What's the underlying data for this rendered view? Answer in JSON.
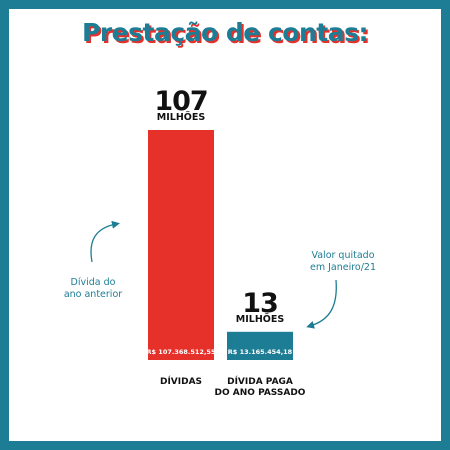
{
  "title": "Prestação de contas:",
  "colors": {
    "accent": "#1d7d95",
    "debt": "#e6302a",
    "paid": "#1d7d95"
  },
  "notes": {
    "left": {
      "line1": "Dívida do",
      "line2": "ano anterior"
    },
    "right": {
      "line1": "Valor quitado",
      "line2": "em Janeiro/21"
    }
  },
  "chart_data": {
    "type": "bar",
    "title": "Prestação de contas:",
    "categories": [
      "DÍVIDAS",
      "DÍVIDA PAGA DO ANO PASSADO"
    ],
    "category_lines": [
      [
        "DÍVIDAS"
      ],
      [
        "DÍVIDA PAGA",
        "DO ANO PASSADO"
      ]
    ],
    "values": [
      107368512.55,
      13165454.18
    ],
    "value_labels": [
      "R$ 107.368.512,55",
      "R$ 13.165.454,18"
    ],
    "headline_numbers": [
      "107",
      "13"
    ],
    "headline_unit": "MILHÕES",
    "bar_colors": [
      "#e6302a",
      "#1d7d95"
    ],
    "ylim": [
      0,
      107368512.55
    ],
    "grid": false,
    "legend": "none"
  }
}
